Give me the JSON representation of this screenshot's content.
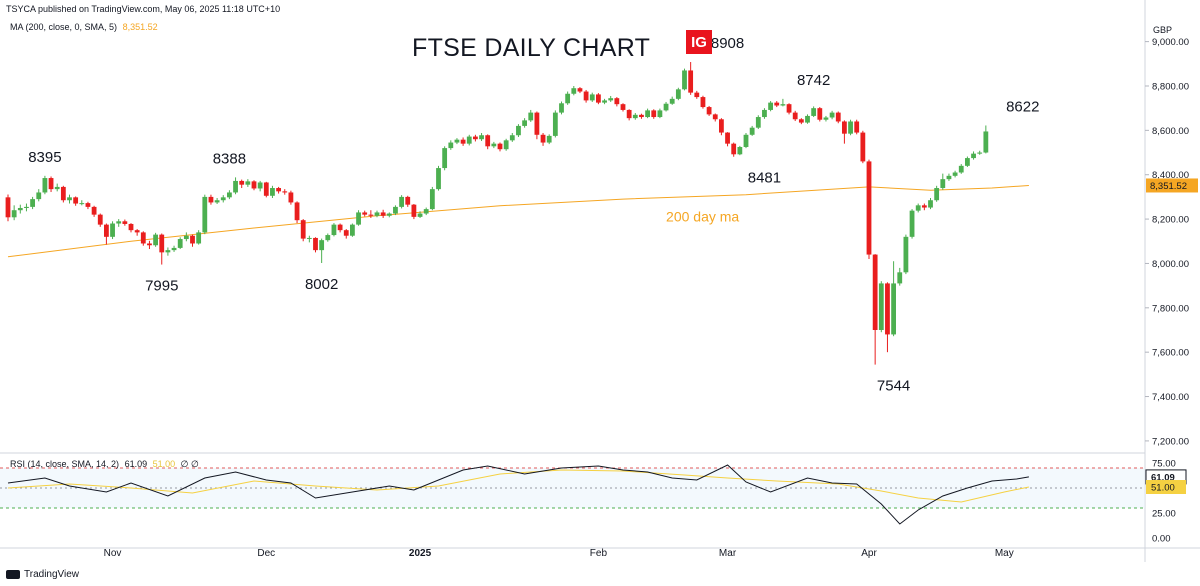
{
  "header": {
    "published": "TSYCA published on TradingView.com, May 06, 2025 11:18 UTC+10",
    "ma_legend": "MA (200, close, 0, SMA, 5)",
    "ma_value": "8,351.52",
    "currency": "GBP",
    "rsi_legend": "RSI (14, close, SMA, 14, 2)",
    "rsi_value": "61.09",
    "rsi_ma_value": "51.00",
    "rsi_tail": "∅ ∅"
  },
  "logo": {
    "text": "IG"
  },
  "footer": {
    "brand": "TradingView"
  },
  "colors": {
    "up": "#4caf50",
    "down": "#e91e1e",
    "ma": "#f5a623",
    "rsi": "#131722",
    "rsi_ma": "#f5d142",
    "rsi_upper": "#e05a5a",
    "rsi_lower": "#4caf50",
    "current_tag": "#26a69a"
  },
  "chart_data": {
    "type": "candlestick",
    "title": "FTSE DAILY CHART",
    "price_axis": {
      "min": 7150,
      "max": 9120,
      "ticks": [
        "7,200.00",
        "7,400.00",
        "7,600.00",
        "7,800.00",
        "8,000.00",
        "8,200.00",
        "8,400.00",
        "8,600.00",
        "8,800.00",
        "9,000.00"
      ],
      "tick_values": [
        7200,
        7400,
        7600,
        7800,
        8000,
        8200,
        8400,
        8600,
        8800,
        9000
      ],
      "current_price_label": "8,351.52",
      "current_price": 8351.52
    },
    "time_axis": {
      "labels": [
        "Nov",
        "Dec",
        "2025",
        "Feb",
        "Mar",
        "Apr",
        "May"
      ],
      "label_index": [
        17,
        42,
        67,
        96,
        117,
        140,
        162
      ]
    },
    "ma_line_label": "200 day ma",
    "ma": [
      [
        0,
        8030
      ],
      [
        20,
        8100
      ],
      [
        40,
        8160
      ],
      [
        60,
        8215
      ],
      [
        80,
        8260
      ],
      [
        100,
        8290
      ],
      [
        120,
        8310
      ],
      [
        140,
        8345
      ],
      [
        150,
        8330
      ],
      [
        160,
        8340
      ],
      [
        166,
        8351.52
      ]
    ],
    "annotations": [
      {
        "text": "8395",
        "idx": 6,
        "price": 8395,
        "pos": "above"
      },
      {
        "text": "7995",
        "idx": 25,
        "price": 7995,
        "pos": "below"
      },
      {
        "text": "8388",
        "idx": 36,
        "price": 8388,
        "pos": "above"
      },
      {
        "text": "8002",
        "idx": 51,
        "price": 8002,
        "pos": "below"
      },
      {
        "text": "8908",
        "idx": 117,
        "price": 8908,
        "pos": "above"
      },
      {
        "text": "8481",
        "idx": 123,
        "price": 8481,
        "pos": "below"
      },
      {
        "text": "8742",
        "idx": 131,
        "price": 8742,
        "pos": "above"
      },
      {
        "text": "7544",
        "idx": 144,
        "price": 7544,
        "pos": "below"
      },
      {
        "text": "8622",
        "idx": 165,
        "price": 8622,
        "pos": "above"
      }
    ],
    "candles": [
      [
        8298,
        8208,
        8311,
        8190
      ],
      [
        8208,
        8240,
        8262,
        8195
      ],
      [
        8240,
        8250,
        8265,
        8225
      ],
      [
        8250,
        8255,
        8270,
        8235
      ],
      [
        8255,
        8290,
        8300,
        8245
      ],
      [
        8290,
        8320,
        8335,
        8280
      ],
      [
        8320,
        8385,
        8395,
        8312
      ],
      [
        8385,
        8335,
        8392,
        8322
      ],
      [
        8335,
        8345,
        8360,
        8325
      ],
      [
        8345,
        8285,
        8350,
        8275
      ],
      [
        8285,
        8298,
        8310,
        8270
      ],
      [
        8298,
        8270,
        8302,
        8260
      ],
      [
        8270,
        8272,
        8285,
        8262
      ],
      [
        8272,
        8255,
        8278,
        8245
      ],
      [
        8255,
        8220,
        8260,
        8210
      ],
      [
        8220,
        8175,
        8225,
        8165
      ],
      [
        8175,
        8120,
        8180,
        8085
      ],
      [
        8120,
        8180,
        8190,
        8110
      ],
      [
        8180,
        8190,
        8200,
        8165
      ],
      [
        8190,
        8178,
        8198,
        8170
      ],
      [
        8178,
        8150,
        8182,
        8140
      ],
      [
        8150,
        8140,
        8155,
        8125
      ],
      [
        8140,
        8090,
        8145,
        8080
      ],
      [
        8090,
        8082,
        8102,
        8065
      ],
      [
        8082,
        8130,
        8138,
        8075
      ],
      [
        8130,
        8050,
        8135,
        7995
      ],
      [
        8050,
        8060,
        8072,
        8035
      ],
      [
        8060,
        8070,
        8080,
        8052
      ],
      [
        8070,
        8110,
        8118,
        8065
      ],
      [
        8110,
        8125,
        8140,
        8100
      ],
      [
        8125,
        8090,
        8130,
        8075
      ],
      [
        8090,
        8140,
        8150,
        8085
      ],
      [
        8140,
        8300,
        8310,
        8132
      ],
      [
        8300,
        8275,
        8310,
        8265
      ],
      [
        8275,
        8285,
        8295,
        8268
      ],
      [
        8285,
        8298,
        8308,
        8275
      ],
      [
        8298,
        8320,
        8330,
        8290
      ],
      [
        8320,
        8372,
        8388,
        8312
      ],
      [
        8372,
        8355,
        8378,
        8340
      ],
      [
        8355,
        8370,
        8380,
        8345
      ],
      [
        8370,
        8338,
        8375,
        8330
      ],
      [
        8338,
        8365,
        8372,
        8325
      ],
      [
        8365,
        8305,
        8368,
        8298
      ],
      [
        8305,
        8340,
        8350,
        8295
      ],
      [
        8340,
        8325,
        8345,
        8315
      ],
      [
        8325,
        8320,
        8335,
        8310
      ],
      [
        8320,
        8275,
        8328,
        8265
      ],
      [
        8275,
        8195,
        8280,
        8182
      ],
      [
        8195,
        8112,
        8200,
        8100
      ],
      [
        8112,
        8115,
        8125,
        8095
      ],
      [
        8115,
        8060,
        8118,
        8050
      ],
      [
        8060,
        8105,
        8112,
        8002
      ],
      [
        8105,
        8128,
        8135,
        8098
      ],
      [
        8128,
        8175,
        8182,
        8122
      ],
      [
        8175,
        8150,
        8180,
        8140
      ],
      [
        8150,
        8125,
        8155,
        8112
      ],
      [
        8125,
        8175,
        8180,
        8120
      ],
      [
        8175,
        8230,
        8240,
        8170
      ],
      [
        8230,
        8220,
        8238,
        8212
      ],
      [
        8220,
        8215,
        8240,
        8205
      ],
      [
        8215,
        8230,
        8238,
        8208
      ],
      [
        8230,
        8215,
        8242,
        8205
      ],
      [
        8215,
        8225,
        8230,
        8208
      ],
      [
        8225,
        8255,
        8262,
        8218
      ],
      [
        8255,
        8300,
        8308,
        8248
      ],
      [
        8300,
        8265,
        8305,
        8255
      ],
      [
        8265,
        8210,
        8268,
        8200
      ],
      [
        8210,
        8225,
        8235,
        8205
      ],
      [
        8225,
        8245,
        8252,
        8218
      ],
      [
        8245,
        8335,
        8345,
        8240
      ],
      [
        8335,
        8430,
        8440,
        8328
      ],
      [
        8430,
        8520,
        8528,
        8420
      ],
      [
        8520,
        8545,
        8555,
        8512
      ],
      [
        8545,
        8558,
        8565,
        8538
      ],
      [
        8558,
        8540,
        8568,
        8530
      ],
      [
        8540,
        8572,
        8580,
        8532
      ],
      [
        8572,
        8560,
        8580,
        8550
      ],
      [
        8560,
        8578,
        8588,
        8552
      ],
      [
        8578,
        8528,
        8582,
        8515
      ],
      [
        8528,
        8540,
        8548,
        8520
      ],
      [
        8540,
        8515,
        8545,
        8505
      ],
      [
        8515,
        8555,
        8562,
        8508
      ],
      [
        8555,
        8578,
        8588,
        8548
      ],
      [
        8578,
        8620,
        8628,
        8570
      ],
      [
        8620,
        8645,
        8655,
        8612
      ],
      [
        8645,
        8680,
        8692,
        8638
      ],
      [
        8680,
        8580,
        8685,
        8560
      ],
      [
        8580,
        8545,
        8588,
        8530
      ],
      [
        8545,
        8575,
        8582,
        8538
      ],
      [
        8575,
        8680,
        8690,
        8568
      ],
      [
        8680,
        8722,
        8730,
        8672
      ],
      [
        8722,
        8765,
        8775,
        8715
      ],
      [
        8765,
        8790,
        8800,
        8758
      ],
      [
        8790,
        8775,
        8795,
        8768
      ],
      [
        8775,
        8735,
        8782,
        8725
      ],
      [
        8735,
        8762,
        8770,
        8728
      ],
      [
        8762,
        8725,
        8768,
        8718
      ],
      [
        8725,
        8735,
        8742,
        8718
      ],
      [
        8735,
        8745,
        8755,
        8728
      ],
      [
        8745,
        8718,
        8750,
        8708
      ],
      [
        8718,
        8692,
        8722,
        8685
      ],
      [
        8692,
        8655,
        8695,
        8645
      ],
      [
        8655,
        8670,
        8678,
        8648
      ],
      [
        8670,
        8660,
        8675,
        8652
      ],
      [
        8660,
        8690,
        8698,
        8655
      ],
      [
        8690,
        8660,
        8695,
        8652
      ],
      [
        8660,
        8690,
        8698,
        8655
      ],
      [
        8690,
        8720,
        8728,
        8685
      ],
      [
        8720,
        8742,
        8752,
        8715
      ],
      [
        8742,
        8785,
        8792,
        8736
      ],
      [
        8785,
        8870,
        8878,
        8780
      ],
      [
        8870,
        8770,
        8908,
        8760
      ],
      [
        8770,
        8750,
        8778,
        8742
      ],
      [
        8750,
        8705,
        8756,
        8698
      ],
      [
        8705,
        8672,
        8710,
        8665
      ],
      [
        8672,
        8650,
        8676,
        8640
      ],
      [
        8650,
        8590,
        8655,
        8578
      ],
      [
        8590,
        8540,
        8592,
        8528
      ],
      [
        8540,
        8492,
        8545,
        8481
      ],
      [
        8492,
        8525,
        8530,
        8488
      ],
      [
        8525,
        8580,
        8588,
        8520
      ],
      [
        8580,
        8612,
        8620,
        8575
      ],
      [
        8612,
        8660,
        8668,
        8606
      ],
      [
        8660,
        8692,
        8700,
        8652
      ],
      [
        8692,
        8725,
        8732,
        8686
      ],
      [
        8725,
        8712,
        8732,
        8705
      ],
      [
        8712,
        8718,
        8742,
        8708
      ],
      [
        8718,
        8680,
        8722,
        8672
      ],
      [
        8680,
        8650,
        8688,
        8642
      ],
      [
        8650,
        8635,
        8655,
        8628
      ],
      [
        8635,
        8665,
        8672,
        8630
      ],
      [
        8665,
        8700,
        8708,
        8660
      ],
      [
        8700,
        8648,
        8705,
        8640
      ],
      [
        8648,
        8658,
        8665,
        8640
      ],
      [
        8658,
        8680,
        8688,
        8650
      ],
      [
        8680,
        8640,
        8685,
        8632
      ],
      [
        8640,
        8585,
        8645,
        8540
      ],
      [
        8585,
        8640,
        8648,
        8578
      ],
      [
        8640,
        8590,
        8648,
        8582
      ],
      [
        8590,
        8460,
        8598,
        8452
      ],
      [
        8460,
        8040,
        8468,
        8020
      ],
      [
        8040,
        7700,
        8042,
        7544
      ],
      [
        7700,
        7910,
        7920,
        7690
      ],
      [
        7910,
        7680,
        7915,
        7600
      ],
      [
        7680,
        7910,
        8010,
        7672
      ],
      [
        7910,
        7960,
        7980,
        7900
      ],
      [
        7960,
        8120,
        8130,
        7952
      ],
      [
        8120,
        8238,
        8245,
        8112
      ],
      [
        8238,
        8262,
        8270,
        8230
      ],
      [
        8262,
        8252,
        8270,
        8240
      ],
      [
        8252,
        8285,
        8295,
        8245
      ],
      [
        8285,
        8340,
        8350,
        8278
      ],
      [
        8340,
        8380,
        8405,
        8332
      ],
      [
        8380,
        8395,
        8405,
        8372
      ],
      [
        8395,
        8410,
        8418,
        8388
      ],
      [
        8410,
        8440,
        8448,
        8404
      ],
      [
        8440,
        8475,
        8482,
        8435
      ],
      [
        8475,
        8495,
        8505,
        8468
      ],
      [
        8495,
        8500,
        8508,
        8490
      ],
      [
        8500,
        8595,
        8622,
        8496
      ]
    ],
    "rsi": {
      "label": "RSI",
      "ticks": [
        "0.00",
        "25.00",
        "50.00",
        "75.00"
      ],
      "tick_values": [
        0,
        25,
        50,
        75
      ],
      "upper_band": 70,
      "mid_band": 50,
      "lower_band": 30,
      "current_value": 61.09,
      "ma_value": 51.0,
      "values": [
        [
          0,
          55
        ],
        [
          6,
          60
        ],
        [
          10,
          52
        ],
        [
          16,
          46
        ],
        [
          20,
          55
        ],
        [
          26,
          42
        ],
        [
          32,
          60
        ],
        [
          37,
          66
        ],
        [
          42,
          58
        ],
        [
          46,
          55
        ],
        [
          50,
          40
        ],
        [
          56,
          46
        ],
        [
          62,
          52
        ],
        [
          66,
          48
        ],
        [
          70,
          58
        ],
        [
          74,
          68
        ],
        [
          78,
          72
        ],
        [
          84,
          64
        ],
        [
          90,
          70
        ],
        [
          96,
          72
        ],
        [
          100,
          68
        ],
        [
          104,
          66
        ],
        [
          108,
          60
        ],
        [
          112,
          58
        ],
        [
          117,
          73
        ],
        [
          120,
          56
        ],
        [
          124,
          46
        ],
        [
          130,
          60
        ],
        [
          134,
          55
        ],
        [
          138,
          54
        ],
        [
          142,
          34
        ],
        [
          145,
          14
        ],
        [
          148,
          28
        ],
        [
          152,
          42
        ],
        [
          156,
          50
        ],
        [
          160,
          57
        ],
        [
          164,
          59
        ],
        [
          166,
          61.09
        ]
      ],
      "ma_values": [
        [
          0,
          50
        ],
        [
          10,
          54
        ],
        [
          20,
          50
        ],
        [
          30,
          45
        ],
        [
          40,
          57
        ],
        [
          50,
          52
        ],
        [
          60,
          48
        ],
        [
          70,
          52
        ],
        [
          80,
          64
        ],
        [
          90,
          68
        ],
        [
          100,
          67
        ],
        [
          110,
          63
        ],
        [
          117,
          60
        ],
        [
          125,
          57
        ],
        [
          135,
          54
        ],
        [
          142,
          47
        ],
        [
          148,
          40
        ],
        [
          155,
          36
        ],
        [
          162,
          46
        ],
        [
          166,
          51
        ]
      ]
    }
  }
}
